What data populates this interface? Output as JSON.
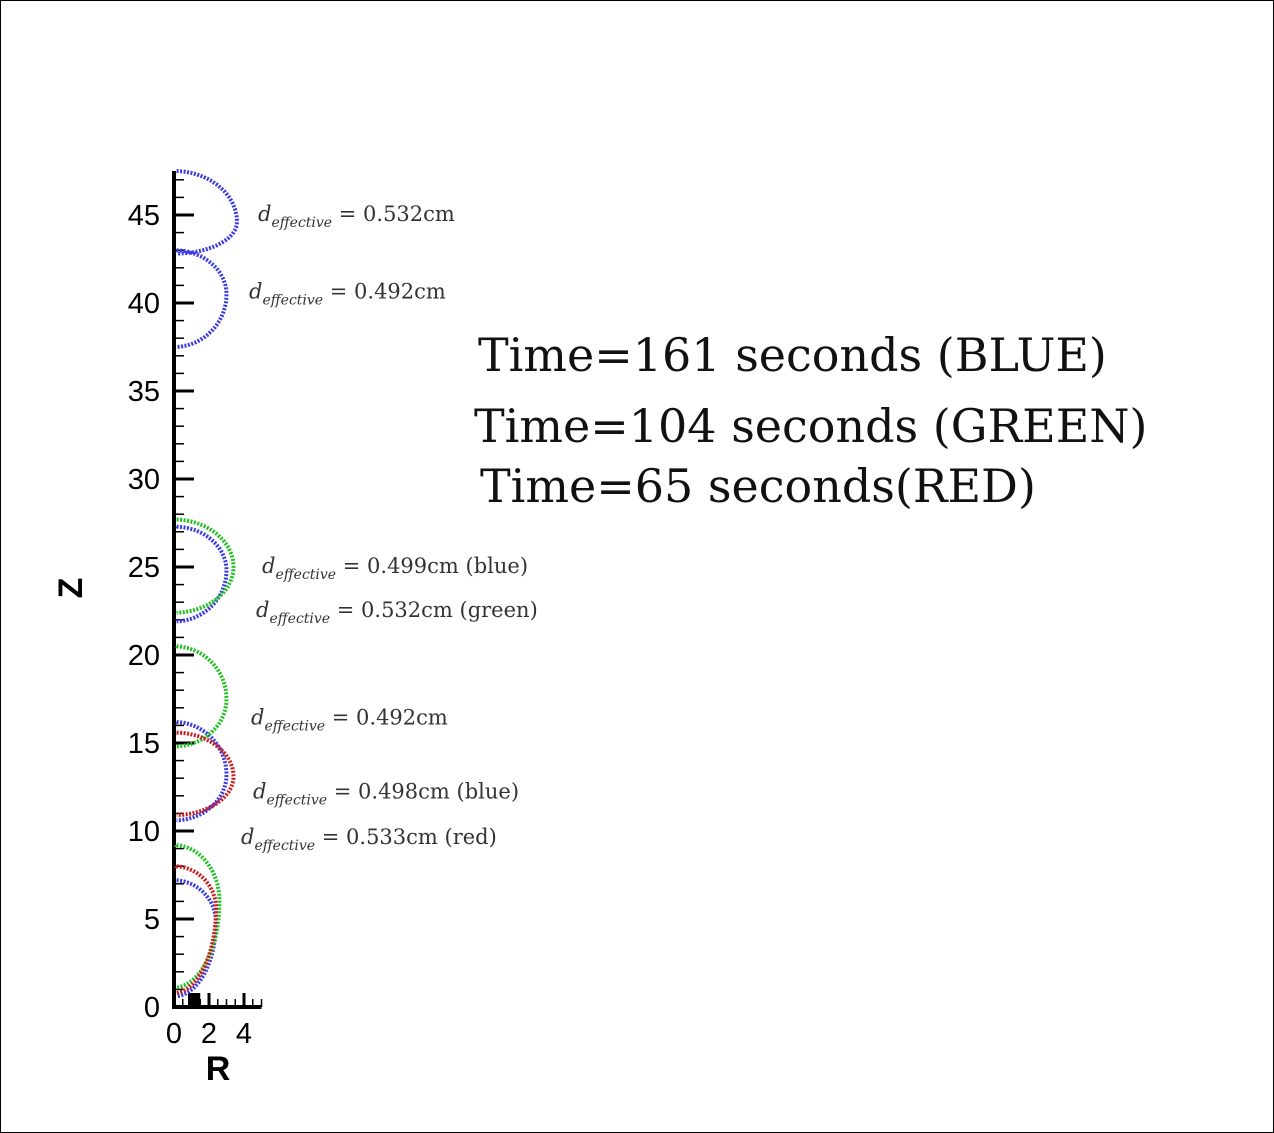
{
  "chart_data": {
    "type": "line",
    "xlabel": "R",
    "ylabel": "Z",
    "xlim": [
      0,
      5
    ],
    "ylim": [
      0,
      47.5
    ],
    "x_ticks": [
      "0",
      "2",
      "4"
    ],
    "y_ticks": [
      "0",
      "5",
      "10",
      "15",
      "20",
      "25",
      "30",
      "35",
      "40",
      "45"
    ],
    "grid": false,
    "time_labels": [
      "Time=161 seconds (BLUE)",
      "Time=104 seconds (GREEN)",
      "Time=65 seconds(RED)"
    ],
    "annotations": [
      {
        "d": "d",
        "sub": "effective",
        "rest": " = 0.532cm",
        "z": 45.0
      },
      {
        "d": "d",
        "sub": "effective",
        "rest": " = 0.492cm",
        "z": 40.6
      },
      {
        "d": "d",
        "sub": "effective",
        "rest": " = 0.499cm  (blue)",
        "z": 25.0
      },
      {
        "d": "d",
        "sub": "effective",
        "rest": " = 0.532cm  (green)",
        "z": 22.5
      },
      {
        "d": "d",
        "sub": "effective",
        "rest": " = 0.492cm",
        "z": 16.4
      },
      {
        "d": "d",
        "sub": "effective",
        "rest": " = 0.498cm  (blue)",
        "z": 12.2
      },
      {
        "d": "d",
        "sub": "effective",
        "rest": " = 0.533cm  (red)",
        "z": 9.6
      }
    ],
    "colors": {
      "blue": "#3a3ae8",
      "green": "#22c022",
      "red": "#cc1e1e"
    },
    "series": [
      {
        "color": "blue",
        "bubbles": [
          {
            "zTop": 47.5,
            "zBottom": 42.8,
            "rMax": 3.6,
            "zAtMax": 44.6
          },
          {
            "zTop": 43.0,
            "zBottom": 37.5,
            "rMax": 3.0,
            "zAtMax": 40.5
          },
          {
            "zTop": 27.3,
            "zBottom": 21.9,
            "rMax": 3.0,
            "zAtMax": 24.8
          },
          {
            "zTop": 16.2,
            "zBottom": 10.6,
            "rMax": 3.0,
            "zAtMax": 13.2
          },
          {
            "zTop": 7.2,
            "zBottom": 0.6,
            "rMax": 2.4,
            "zAtMax": 4.8
          }
        ]
      },
      {
        "color": "green",
        "bubbles": [
          {
            "zTop": 27.7,
            "zBottom": 22.4,
            "rMax": 3.4,
            "zAtMax": 25.0
          },
          {
            "zTop": 20.5,
            "zBottom": 14.8,
            "rMax": 3.0,
            "zAtMax": 17.5
          },
          {
            "zTop": 9.2,
            "zBottom": 1.1,
            "rMax": 2.6,
            "zAtMax": 6.0
          }
        ]
      },
      {
        "color": "red",
        "bubbles": [
          {
            "zTop": 15.6,
            "zBottom": 10.9,
            "rMax": 3.4,
            "zAtMax": 13.1
          },
          {
            "zTop": 8.0,
            "zBottom": 0.8,
            "rMax": 2.4,
            "zAtMax": 5.6
          }
        ]
      }
    ]
  }
}
